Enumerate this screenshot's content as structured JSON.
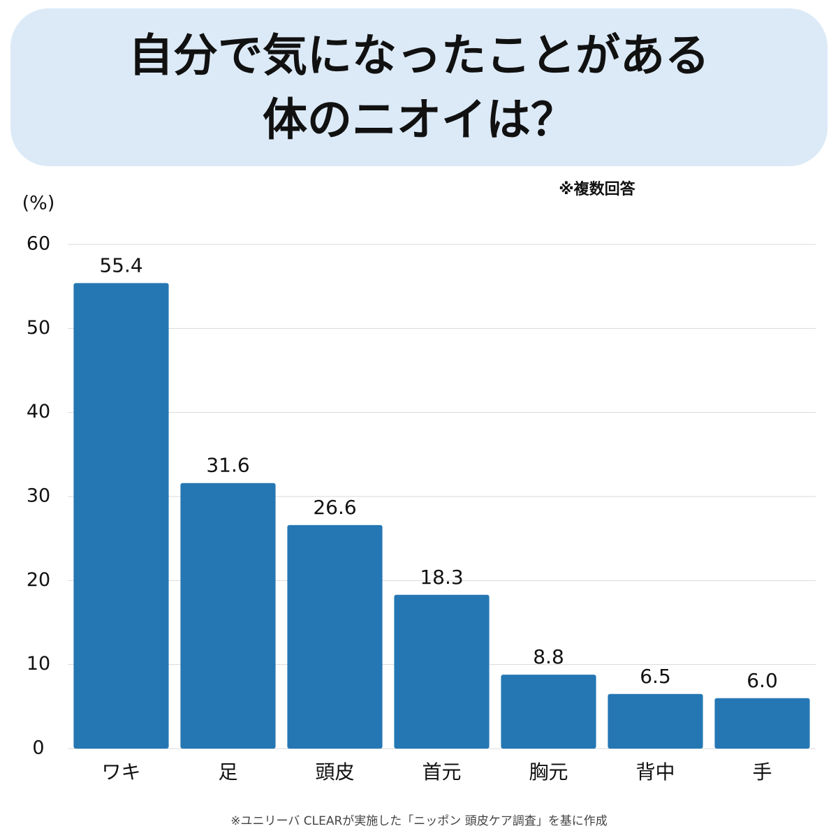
{
  "chart_data": {
    "type": "bar",
    "title": [
      "自分で気になったことがある",
      "体のニオイは？"
    ],
    "y_label": "(%)",
    "note": "※複数回答",
    "source": "※ユニリーバ CLEARが実施した「ニッポン 頭皮ケア調査」を基に作成",
    "categories": [
      "ワキ",
      "足",
      "頭皮",
      "首元",
      "胸元",
      "背中",
      "手"
    ],
    "values": [
      55.4,
      31.6,
      26.6,
      18.3,
      8.8,
      6.5,
      6.0
    ],
    "value_labels": [
      "55.4",
      "31.6",
      "26.6",
      "18.3",
      "8.8",
      "6.5",
      "6.0"
    ],
    "color": "#2577b4",
    "ylim": [
      0,
      60
    ],
    "yticks": [
      0,
      10,
      20,
      30,
      40,
      50,
      60
    ],
    "grid": true
  }
}
